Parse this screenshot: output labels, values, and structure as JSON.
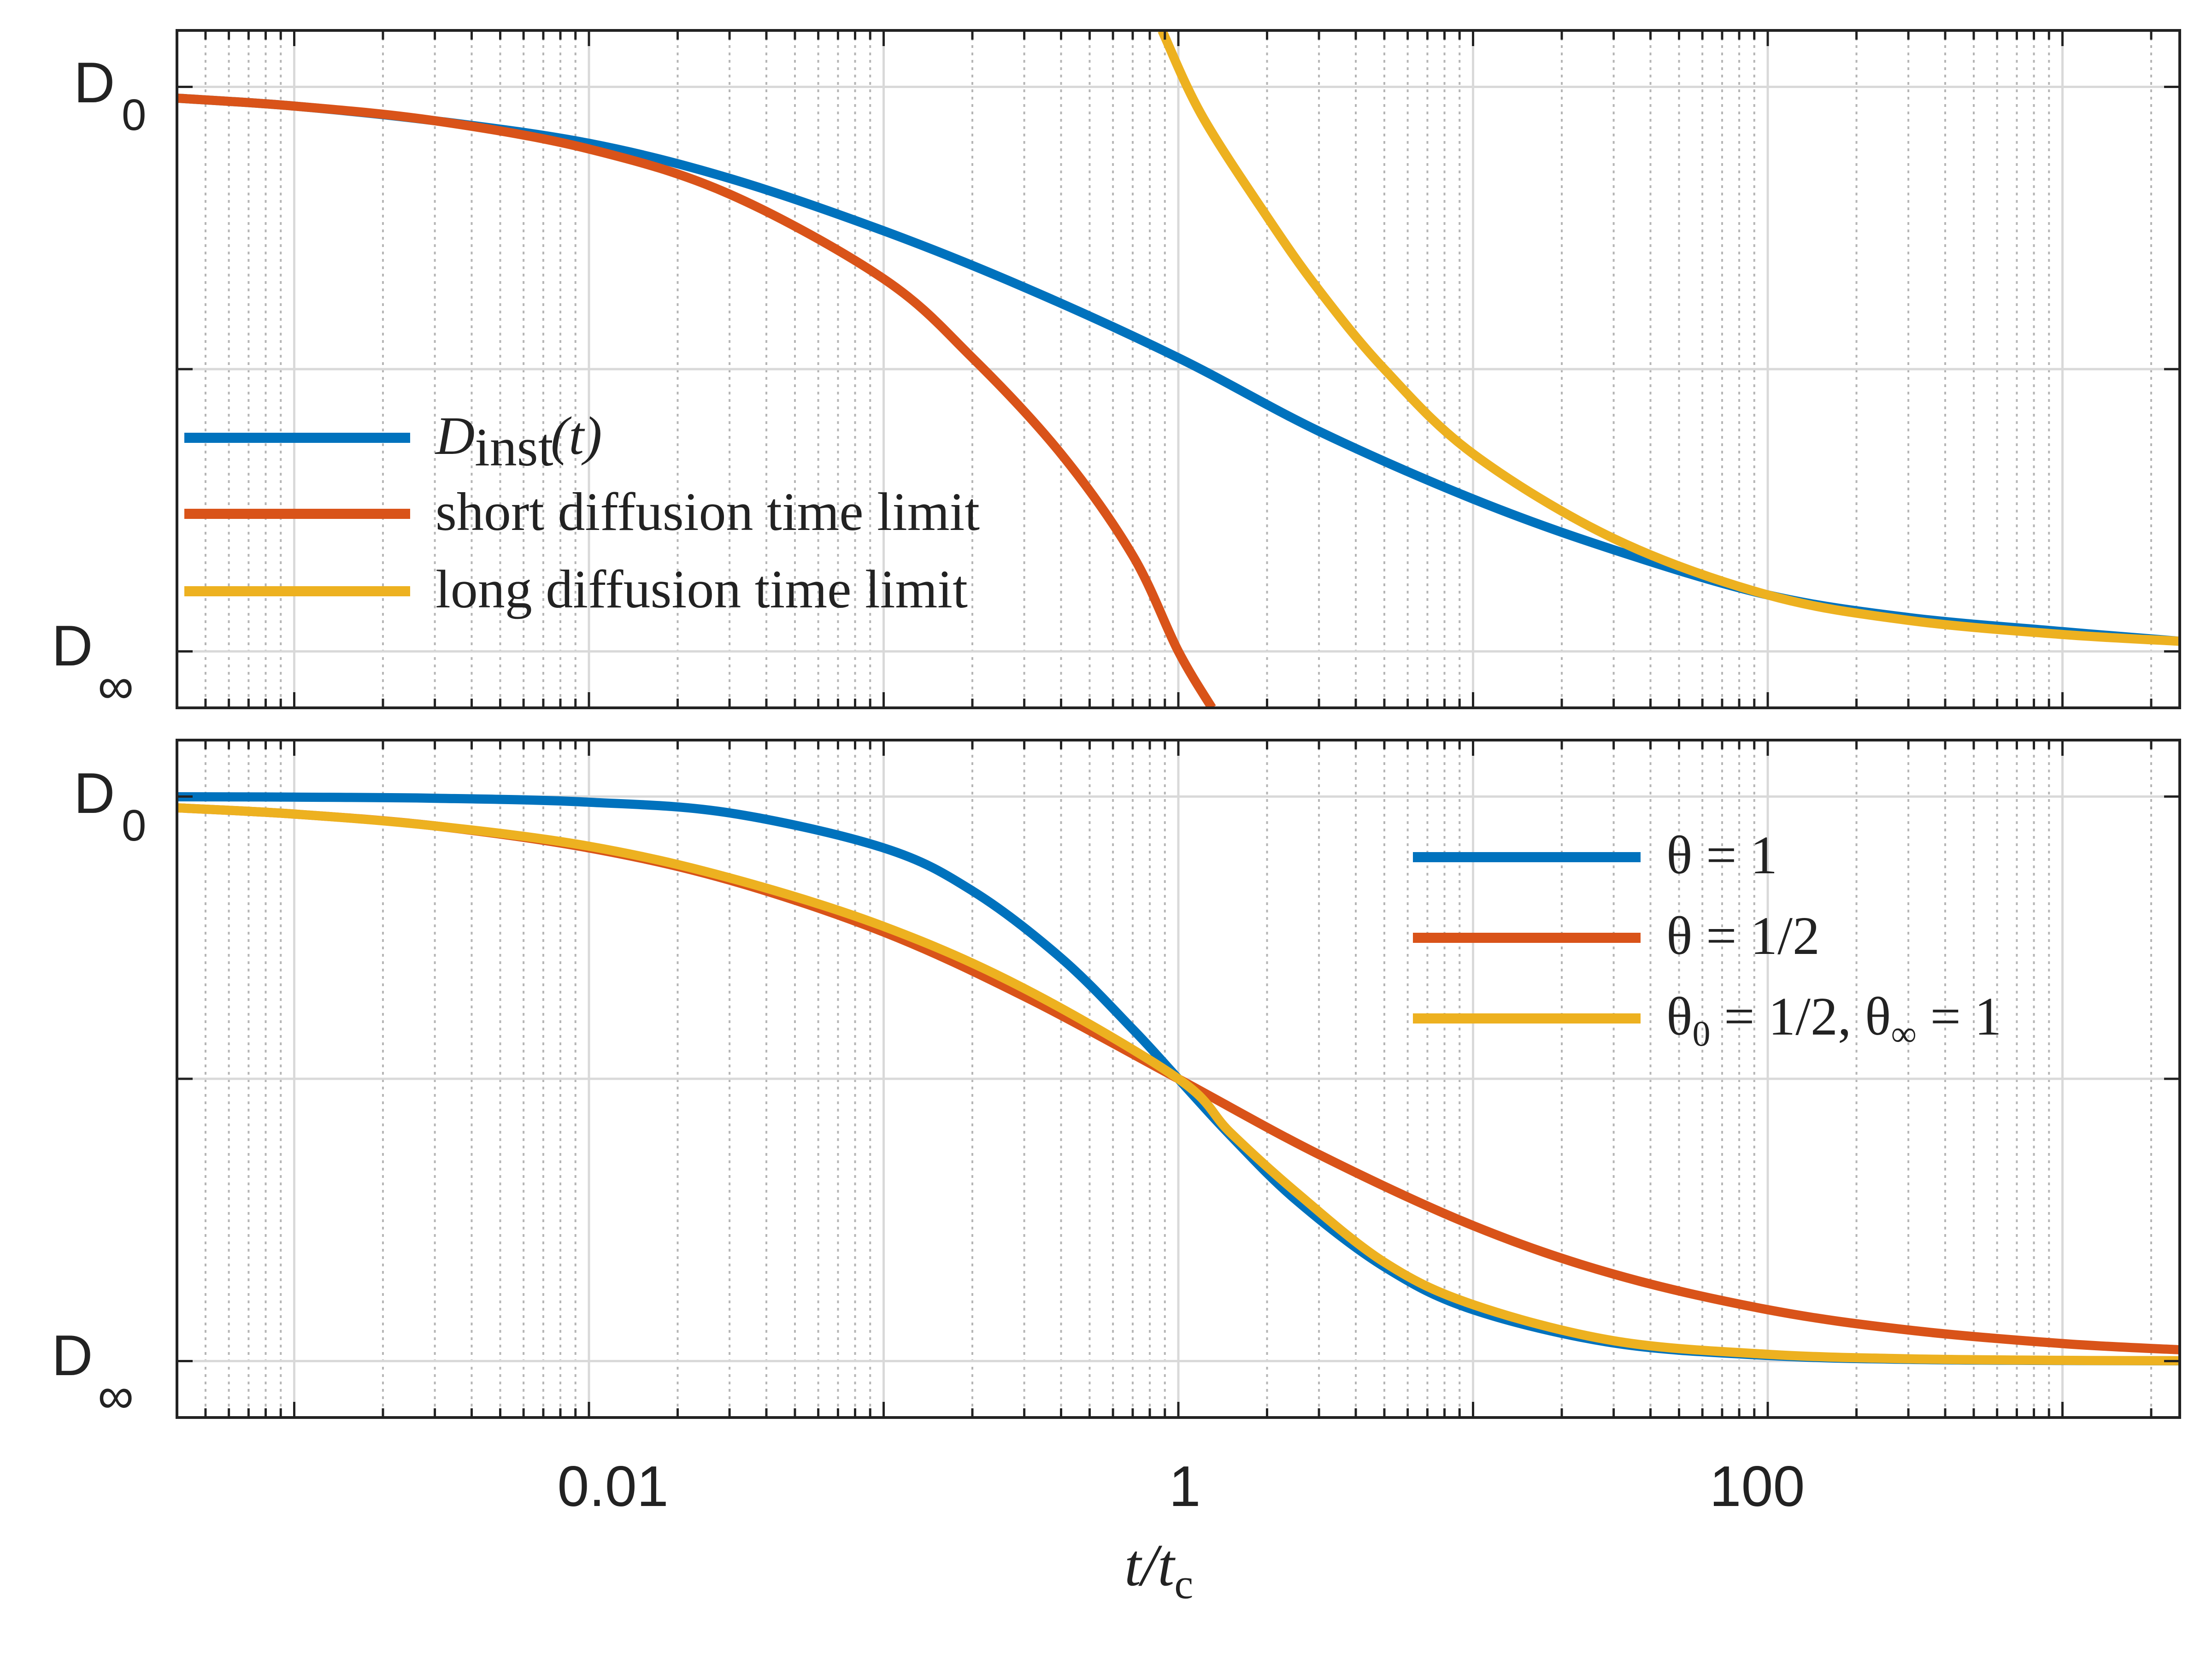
{
  "chart_data": [
    {
      "type": "line",
      "panel": "top",
      "xscale": "log",
      "xlim": [
        0.0004,
        2500
      ],
      "ylim": [
        -0.1,
        1.1
      ],
      "ylabel_ticks": [
        {
          "value": 1,
          "main": "D",
          "sub": "0"
        },
        {
          "value": 0,
          "main": "D",
          "sub": "∞"
        }
      ],
      "y_gridlines": [
        0,
        0.5,
        1
      ],
      "grid": "on",
      "legend_position": "left",
      "series": [
        {
          "name": "D_inst(t)",
          "legend_main": "D",
          "legend_sub": "inst",
          "legend_tail": "(t)",
          "color": "#0072BD",
          "x": [
            0.0004,
            0.001,
            0.003,
            0.01,
            0.03,
            0.1,
            0.3,
            1,
            3,
            10,
            30,
            100,
            300,
            1000,
            2500
          ],
          "y": [
            0.98,
            0.966,
            0.94,
            0.9,
            0.838,
            0.745,
            0.645,
            0.52,
            0.39,
            0.27,
            0.18,
            0.1,
            0.06,
            0.035,
            0.018
          ]
        },
        {
          "name": "short diffusion time limit",
          "color": "#D95319",
          "x": [
            0.0004,
            0.001,
            0.003,
            0.01,
            0.03,
            0.1,
            0.2,
            0.4,
            0.7,
            1.0,
            1.3
          ],
          "y": [
            0.98,
            0.966,
            0.94,
            0.89,
            0.81,
            0.66,
            0.52,
            0.35,
            0.17,
            0.0,
            -0.1
          ]
        },
        {
          "name": "long diffusion time limit",
          "color": "#EDB120",
          "x": [
            0.88,
            1.2,
            2,
            3,
            5,
            10,
            30,
            100,
            300,
            1000,
            2500
          ],
          "y": [
            1.1,
            0.95,
            0.77,
            0.64,
            0.5,
            0.35,
            0.2,
            0.1,
            0.055,
            0.03,
            0.018
          ]
        }
      ]
    },
    {
      "type": "line",
      "panel": "bottom",
      "xscale": "log",
      "xlim": [
        0.0004,
        2500
      ],
      "ylim": [
        -0.1,
        1.1
      ],
      "ylabel_ticks": [
        {
          "value": 1,
          "main": "D",
          "sub": "0"
        },
        {
          "value": 0,
          "main": "D",
          "sub": "∞"
        }
      ],
      "y_gridlines": [
        0,
        0.5,
        1
      ],
      "grid": "on",
      "legend_position": "top-right",
      "xlabel_main": "t/t",
      "xlabel_sub": "c",
      "x_ticks": [
        {
          "value": 0.01,
          "label": "0.01"
        },
        {
          "value": 1,
          "label": "1"
        },
        {
          "value": 100,
          "label": "100"
        }
      ],
      "series": [
        {
          "name": "θ = 1",
          "color": "#0072BD",
          "x": [
            0.0004,
            0.001,
            0.003,
            0.01,
            0.03,
            0.1,
            0.2,
            0.4,
            0.7,
            1,
            1.5,
            2.5,
            5,
            10,
            30,
            100,
            300,
            1000,
            2500
          ],
          "y": [
            0.9996,
            0.999,
            0.997,
            0.99,
            0.971,
            0.909,
            0.833,
            0.714,
            0.588,
            0.5,
            0.4,
            0.286,
            0.167,
            0.091,
            0.032,
            0.01,
            0.003,
            0.001,
            0.0004
          ]
        },
        {
          "name": "θ = 1/2",
          "color": "#D95319",
          "x": [
            0.0004,
            0.001,
            0.003,
            0.01,
            0.03,
            0.1,
            0.3,
            1,
            3,
            10,
            30,
            100,
            300,
            1000,
            2500
          ],
          "y": [
            0.98,
            0.969,
            0.948,
            0.909,
            0.852,
            0.76,
            0.646,
            0.5,
            0.366,
            0.24,
            0.154,
            0.091,
            0.055,
            0.031,
            0.02
          ]
        },
        {
          "name": "θ0 = 1/2, θ∞ = 1",
          "legend_parts": [
            {
              "t": "θ"
            },
            {
              "sub": "0"
            },
            {
              "t": " = 1/2, θ"
            },
            {
              "sub": "∞"
            },
            {
              "t": " = 1"
            }
          ],
          "color": "#EDB120",
          "x": [
            0.0004,
            0.001,
            0.003,
            0.01,
            0.03,
            0.1,
            0.3,
            1,
            1.5,
            2.5,
            5,
            10,
            30,
            100,
            300,
            1000,
            2500
          ],
          "y": [
            0.98,
            0.969,
            0.948,
            0.912,
            0.856,
            0.77,
            0.66,
            0.5,
            0.405,
            0.3,
            0.175,
            0.1,
            0.036,
            0.012,
            0.004,
            0.0013,
            0.0006
          ]
        }
      ]
    }
  ],
  "legend_top": {
    "d_inst_main": "D",
    "d_inst_sub": "inst",
    "d_inst_tail": "(t)",
    "short": "short diffusion time limit",
    "long": "long diffusion time limit"
  },
  "legend_bottom": {
    "theta1": "θ = 1",
    "theta_half": "θ = 1/2",
    "mixed_theta0": "θ",
    "mixed_sub0": "0",
    "mixed_mid": " = 1/2, θ",
    "mixed_subinf": "∞",
    "mixed_end": " = 1"
  },
  "axis": {
    "xlabel_main": "t/t",
    "xlabel_sub": "c",
    "xtick_001": "0.01",
    "xtick_1": "1",
    "xtick_100": "100",
    "ytick_top_main": "D",
    "ytick_top_sub": "0",
    "ytick_bot_main": "D",
    "ytick_bot_sub": "∞"
  },
  "colors": {
    "blue": "#0072BD",
    "orange": "#D95319",
    "yellow": "#EDB120",
    "grid_major": "#d9d9d9",
    "grid_minor": "#b5b5b5",
    "axis": "#222222"
  }
}
